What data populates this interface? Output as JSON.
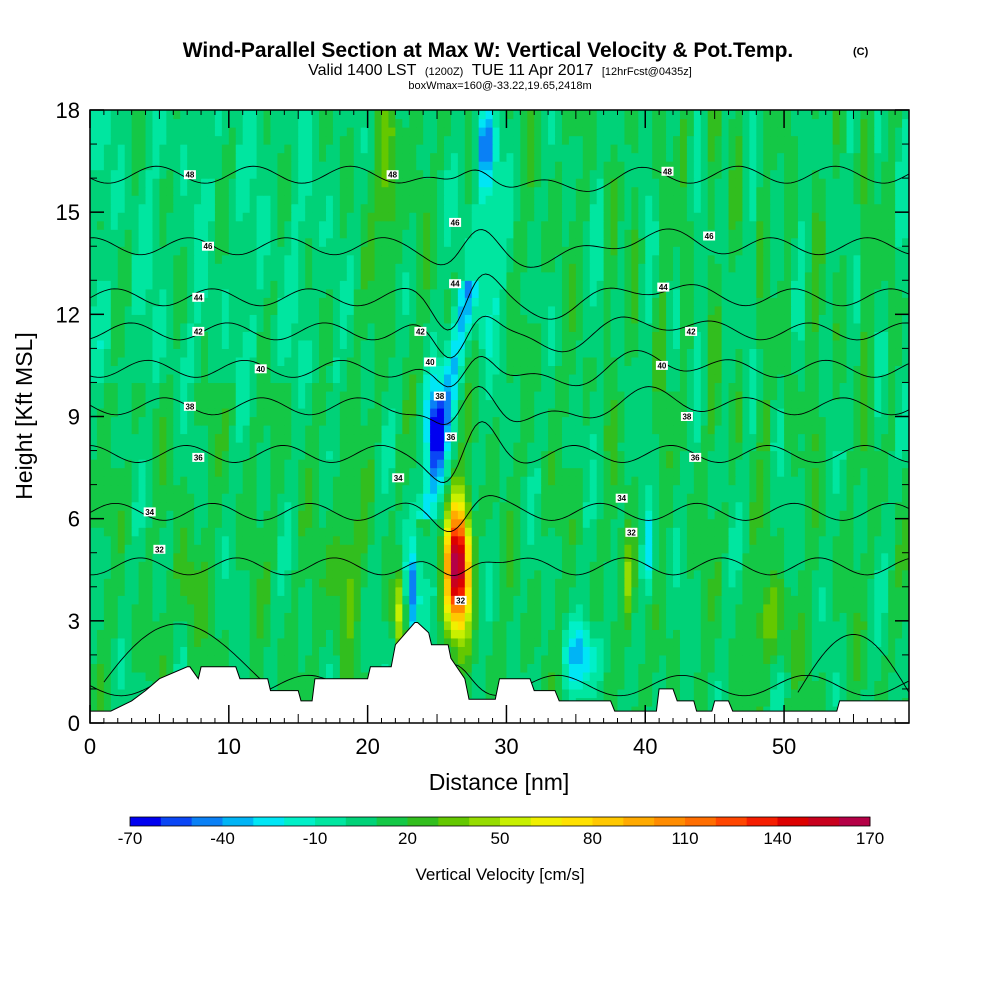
{
  "chart_data": {
    "type": "heatmap",
    "title": "Wind-Parallel Section at Max W: Vertical Velocity & Pot.Temp.",
    "title_mark": "(C)",
    "subtitle_main": "Valid 1400 LST",
    "subtitle_utc": "(1200Z)",
    "subtitle_date": "TUE 11 Apr 2017",
    "subtitle_fcst": "[12hrFcst@0435z]",
    "subtitle_box": "boxWmax=160@-33.22,19.65,2418m",
    "xlabel": "Distance [nm]",
    "ylabel": "Height [Kft MSL]",
    "xlim": [
      0,
      59
    ],
    "ylim": [
      0,
      18
    ],
    "xticks": [
      0,
      10,
      20,
      30,
      40,
      50
    ],
    "yticks": [
      0,
      3,
      6,
      9,
      12,
      15,
      18
    ],
    "colorbar": {
      "title": "Vertical Velocity [cm/s]",
      "levels": [
        -70,
        -60,
        -50,
        -40,
        -30,
        -20,
        -10,
        0,
        10,
        20,
        30,
        40,
        50,
        60,
        70,
        80,
        90,
        100,
        110,
        120,
        130,
        140,
        150,
        160,
        170
      ],
      "tick_labels": [
        "-70",
        "-40",
        "-10",
        "20",
        "50",
        "80",
        "110",
        "140",
        "170"
      ],
      "colors": [
        "#0000f0",
        "#0a46f5",
        "#0a80f5",
        "#00b4f5",
        "#00e6f5",
        "#00f0c8",
        "#00e6a0",
        "#00d278",
        "#14c846",
        "#32be1e",
        "#64c800",
        "#96dc00",
        "#c8f000",
        "#f0f000",
        "#ffe100",
        "#ffc800",
        "#ffaa00",
        "#ff8c00",
        "#ff6e00",
        "#ff4600",
        "#f51e00",
        "#dc0000",
        "#c8001e",
        "#b40046"
      ]
    },
    "w_features": [
      {
        "label": "main updraft core",
        "x": 26.5,
        "z": 4.6,
        "sx": 0.85,
        "sz": 1.8,
        "w": 160
      },
      {
        "label": "updraft tilt",
        "x": 24.8,
        "z": 8.8,
        "sx": 0.7,
        "sz": 1.4,
        "w": -55
      },
      {
        "label": "downdraft left",
        "x": 23.2,
        "z": 3.8,
        "sx": 0.5,
        "sz": 1.5,
        "w": -65
      },
      {
        "label": "upper downdraft",
        "x": 28.5,
        "z": 17.0,
        "sx": 0.6,
        "sz": 1.2,
        "w": -55
      },
      {
        "label": "cyan band",
        "x": 28.5,
        "z": 14.0,
        "sx": 1.4,
        "sz": 3.0,
        "w": -20
      },
      {
        "label": "low downdraft",
        "x": 35.5,
        "z": 2.0,
        "sx": 1.4,
        "sz": 0.9,
        "w": -40
      },
      {
        "label": "right downdraft",
        "x": 40.3,
        "z": 5.0,
        "sx": 0.45,
        "sz": 1.3,
        "w": -40
      },
      {
        "label": "right updraft",
        "x": 38.8,
        "z": 4.0,
        "sx": 0.5,
        "sz": 1.6,
        "w": 35
      },
      {
        "label": "left updraft",
        "x": 22.3,
        "z": 3.3,
        "sx": 0.5,
        "sz": 1.0,
        "w": 45
      },
      {
        "label": "west band",
        "x": 18.3,
        "z": 4.5,
        "sx": 1.0,
        "sz": 2.0,
        "w": 25
      },
      {
        "label": "far west band",
        "x": 7.0,
        "z": 4.0,
        "sx": 0.8,
        "sz": 1.5,
        "w": 20
      },
      {
        "label": "east band",
        "x": 49.0,
        "z": 3.0,
        "sx": 1.2,
        "sz": 1.2,
        "w": 25
      },
      {
        "label": "upper left band",
        "x": 21.5,
        "z": 16.0,
        "sx": 0.7,
        "sz": 2.5,
        "w": 28
      }
    ],
    "terrain": {
      "x": [
        0,
        1.5,
        3,
        4,
        5,
        7,
        7.2,
        7.8,
        8,
        10.5,
        10.8,
        12.8,
        13,
        15,
        15.2,
        16,
        16.2,
        20,
        20.2,
        21.7,
        22,
        23.4,
        23.6,
        24.4,
        24.6,
        25.8,
        26,
        27,
        27.3,
        29.2,
        29.5,
        30,
        30.2,
        31.7,
        32,
        33.5,
        33.8,
        35,
        35.3,
        37.5,
        37.8,
        40.8,
        41,
        42,
        42.3,
        43.5,
        43.7,
        44.8,
        45,
        46,
        46.3,
        53.8,
        54,
        59
      ],
      "z": [
        0.35,
        0.35,
        0.65,
        0.95,
        1.3,
        1.65,
        1.65,
        1.3,
        1.65,
        1.65,
        1.3,
        1.3,
        0.95,
        0.95,
        0.65,
        0.65,
        1.3,
        1.3,
        1.65,
        1.65,
        2.3,
        2.95,
        2.95,
        2.65,
        2.3,
        2.3,
        1.9,
        1.3,
        0.7,
        0.7,
        1.3,
        1.3,
        1.3,
        1.3,
        0.95,
        0.95,
        0.65,
        0.65,
        0.65,
        0.65,
        0.35,
        0.35,
        1.0,
        1.0,
        0.65,
        0.65,
        0.35,
        0.35,
        0.65,
        0.65,
        0.35,
        0.35,
        0.65,
        0.65
      ]
    },
    "theta_contours": [
      {
        "level": 32,
        "z0": 4.6,
        "label": "32",
        "label_pos": [
          [
            5,
            5.1
          ],
          [
            39,
            5.6
          ]
        ]
      },
      {
        "level": 32,
        "z0": 1.1,
        "label": "32",
        "label_pos": [
          [
            26.7,
            3.6
          ]
        ]
      },
      {
        "level": 34,
        "z0": 6.2,
        "label": "34",
        "label_pos": [
          [
            4.3,
            6.2
          ],
          [
            22.2,
            7.2
          ],
          [
            38.3,
            6.6
          ]
        ]
      },
      {
        "level": 36,
        "z0": 7.9,
        "label": "36",
        "label_pos": [
          [
            7.8,
            7.8
          ],
          [
            26.0,
            8.4
          ],
          [
            43.6,
            7.8
          ]
        ]
      },
      {
        "level": 38,
        "z0": 9.3,
        "label": "38",
        "label_pos": [
          [
            7.2,
            9.3
          ],
          [
            25.2,
            9.6
          ],
          [
            43.0,
            9.0
          ]
        ]
      },
      {
        "level": 40,
        "z0": 10.4,
        "label": "40",
        "label_pos": [
          [
            12.3,
            10.4
          ],
          [
            24.5,
            10.6
          ],
          [
            41.2,
            10.5
          ]
        ]
      },
      {
        "level": 42,
        "z0": 11.5,
        "label": "42",
        "label_pos": [
          [
            7.8,
            11.5
          ],
          [
            23.8,
            11.5
          ],
          [
            43.3,
            11.5
          ]
        ]
      },
      {
        "level": 44,
        "z0": 12.5,
        "label": "44",
        "label_pos": [
          [
            7.8,
            12.5
          ],
          [
            26.3,
            12.9
          ],
          [
            41.3,
            12.8
          ]
        ]
      },
      {
        "level": 46,
        "z0": 14.0,
        "label": "46",
        "label_pos": [
          [
            8.5,
            14.0
          ],
          [
            26.3,
            14.7
          ],
          [
            44.6,
            14.3
          ]
        ]
      },
      {
        "level": 48,
        "z0": 16.1,
        "label": "48",
        "label_pos": [
          [
            7.2,
            16.1
          ],
          [
            21.8,
            16.1
          ],
          [
            41.6,
            16.2
          ]
        ]
      }
    ]
  }
}
